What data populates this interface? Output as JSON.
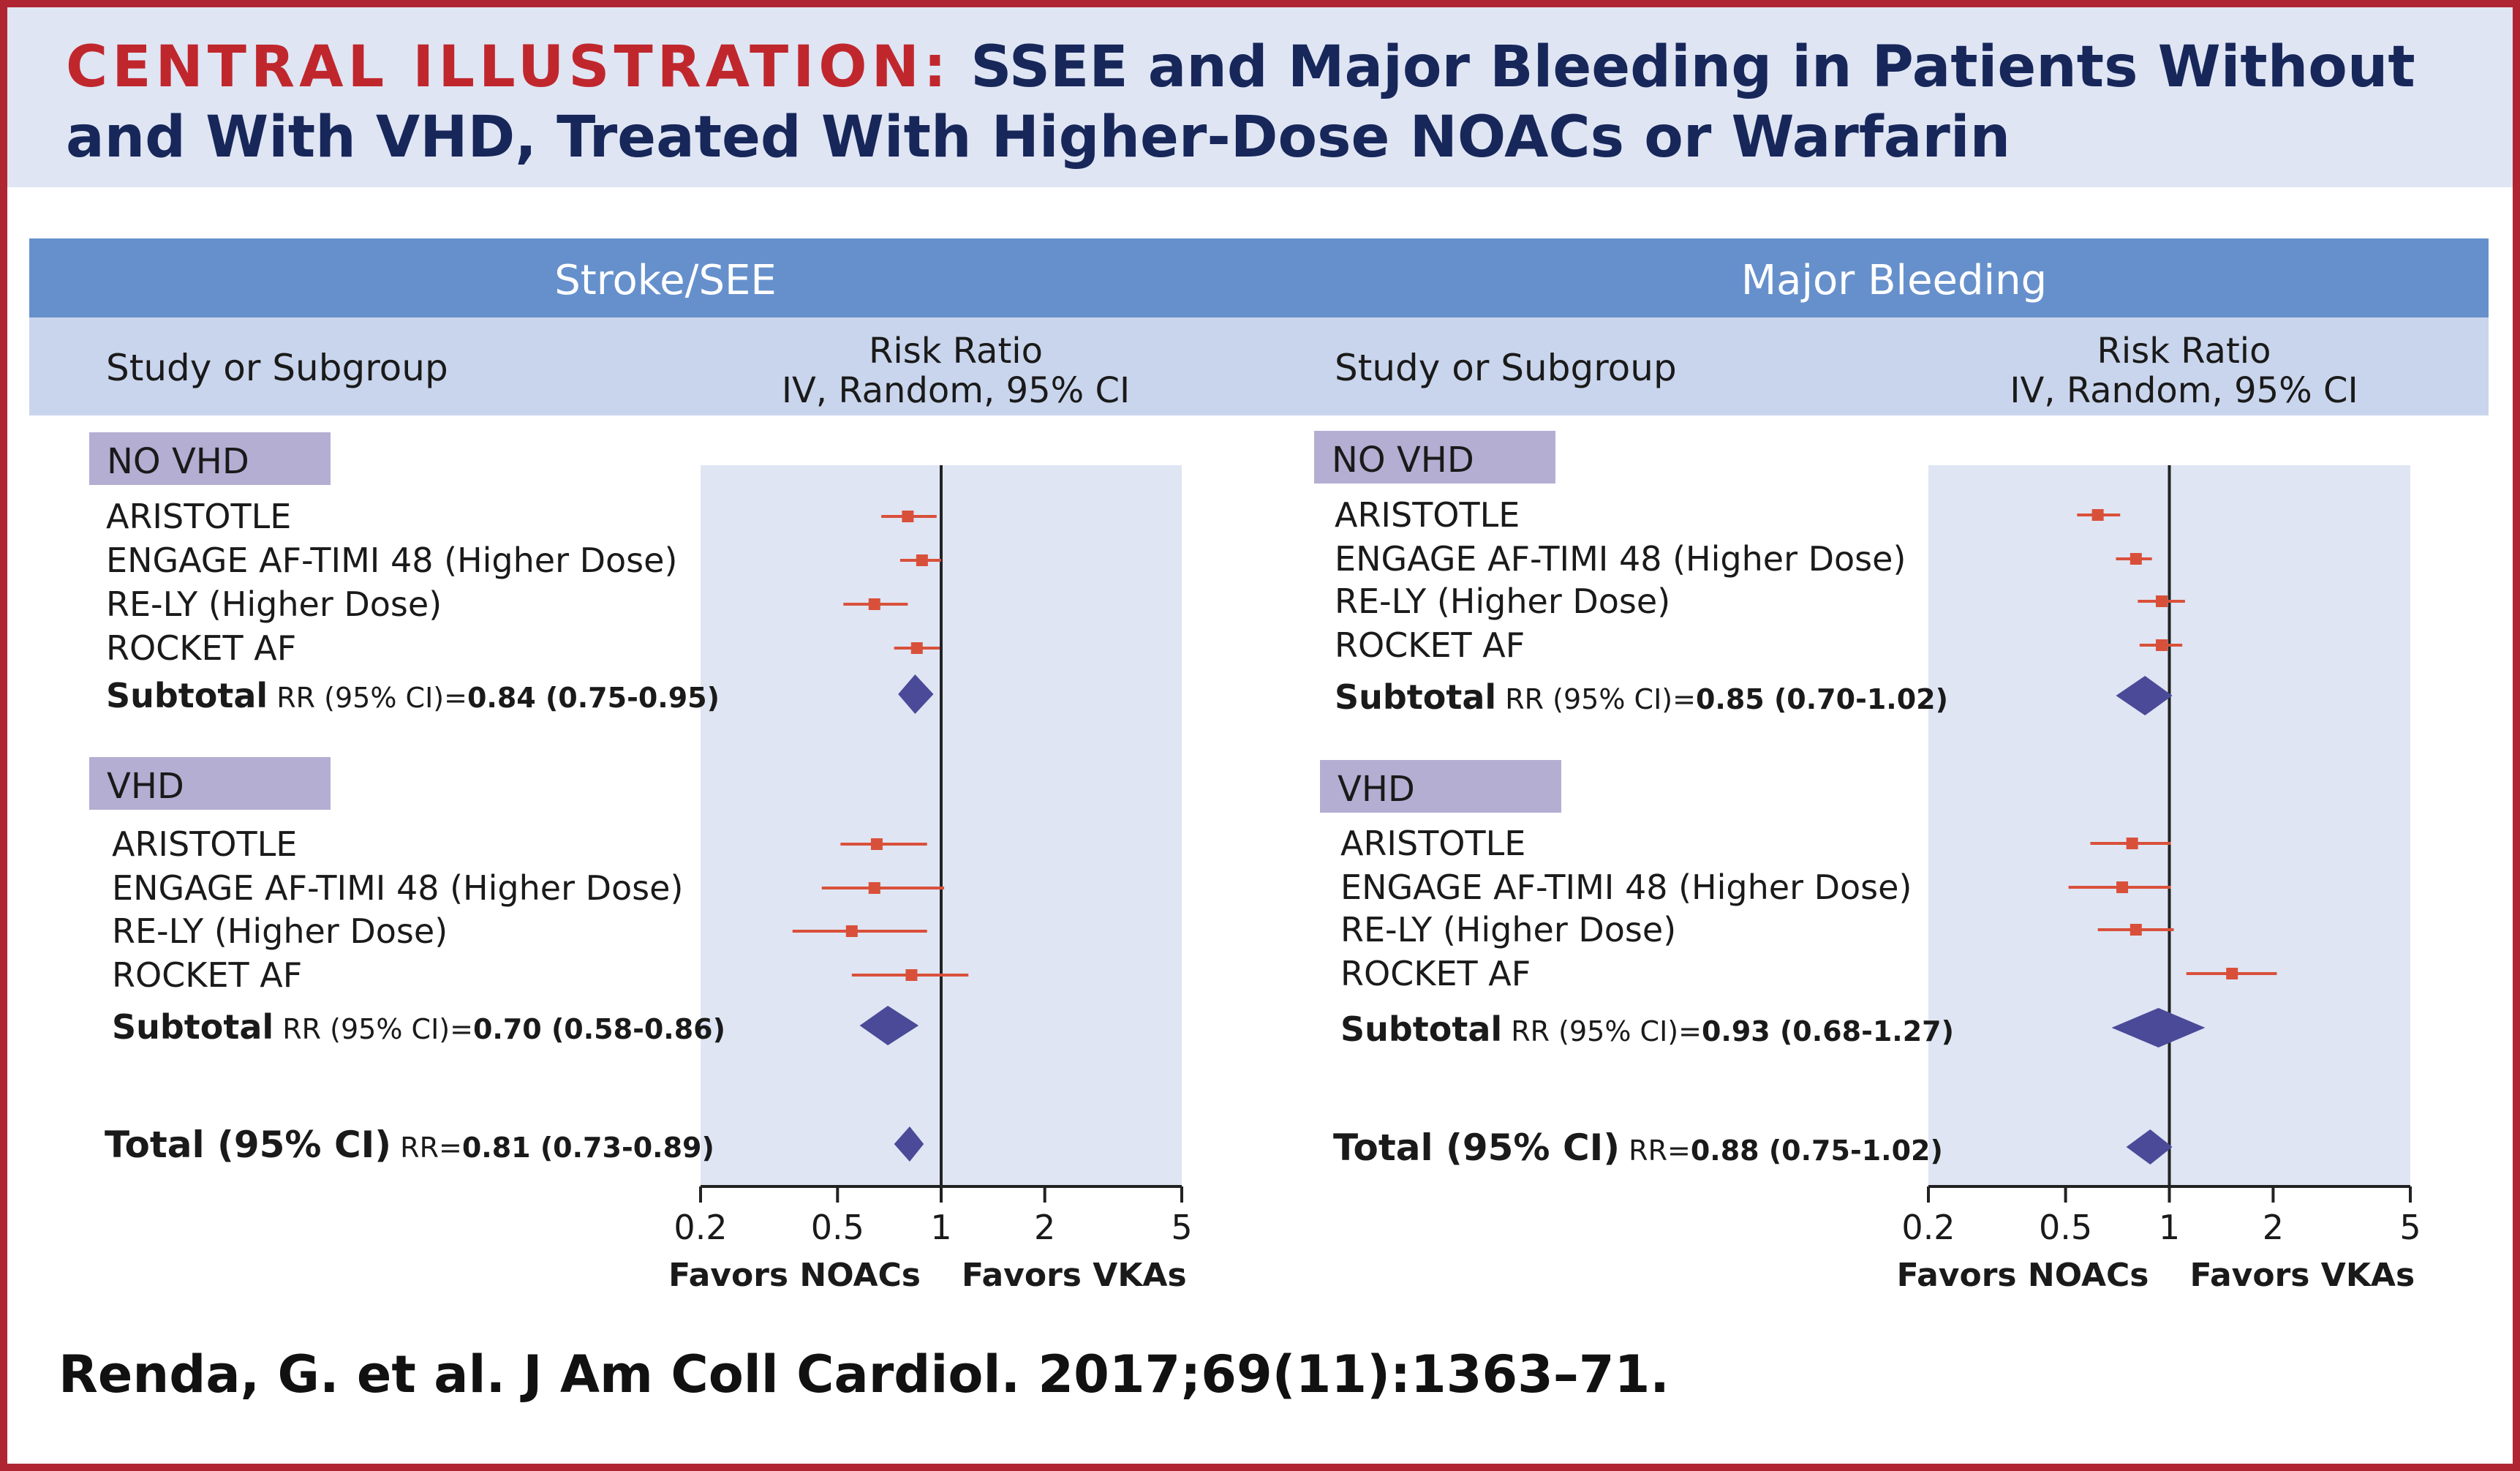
{
  "header": {
    "title_lead": "CENTRAL ILLUSTRATION:",
    "title_rest": "SSEE and Major Bleeding in Patients Without and With VHD, Treated With Higher-Dose NOACs or Warfarin"
  },
  "citation": "Renda, G. et al. J Am Coll Cardiol. 2017;69(11):1363–71.",
  "colors": {
    "border": "#b02532",
    "title_lead": "#c0272d",
    "title_text": "#17275a",
    "panel_header": "#6690cc",
    "subheader": "#c9d5ec",
    "plot_bg": "#dfe5f3",
    "group_label_bg": "#b4aed3",
    "study_marker": "#d9503a",
    "diamond": "#4a4a99"
  },
  "column_headers": {
    "study": "Study or Subgroup",
    "ratio_line1": "Risk Ratio",
    "ratio_line2": "IV, Random, 95% CI"
  },
  "axis_labels": {
    "left": "Favors NOACs",
    "right": "Favors  VKAs"
  },
  "chart_data": [
    {
      "type": "forest",
      "title": "Stroke/SEE",
      "x_scale": "log",
      "xlim": [
        0.2,
        5
      ],
      "xticks": [
        {
          "value": 0.2,
          "label": "0.2"
        },
        {
          "value": 0.5,
          "label": "0.5"
        },
        {
          "value": 1,
          "label": "1"
        },
        {
          "value": 2,
          "label": "2"
        },
        {
          "value": 5,
          "label": "5"
        }
      ],
      "reference_line": 1,
      "groups": [
        {
          "label": "NO VHD",
          "studies": [
            {
              "name": "ARISTOTLE",
              "rr": 0.8,
              "lo": 0.67,
              "hi": 0.97
            },
            {
              "name": "ENGAGE AF-TIMI 48 (Higher Dose)",
              "rr": 0.88,
              "lo": 0.76,
              "hi": 1.0
            },
            {
              "name": "RE-LY (Higher Dose)",
              "rr": 0.64,
              "lo": 0.52,
              "hi": 0.8
            },
            {
              "name": "ROCKET AF",
              "rr": 0.85,
              "lo": 0.73,
              "hi": 0.99
            }
          ],
          "subtotal": {
            "label": "Subtotal",
            "prefix": "RR (95% CI)=",
            "text": "0.84 (0.75-0.95)",
            "rr": 0.84,
            "lo": 0.75,
            "hi": 0.95
          }
        },
        {
          "label": "VHD",
          "studies": [
            {
              "name": "ARISTOTLE",
              "rr": 0.65,
              "lo": 0.51,
              "hi": 0.91
            },
            {
              "name": "ENGAGE AF-TIMI 48 (Higher Dose)",
              "rr": 0.64,
              "lo": 0.45,
              "hi": 1.02
            },
            {
              "name": "RE-LY (Higher Dose)",
              "rr": 0.55,
              "lo": 0.37,
              "hi": 0.91
            },
            {
              "name": "ROCKET AF",
              "rr": 0.82,
              "lo": 0.55,
              "hi": 1.2
            }
          ],
          "subtotal": {
            "label": "Subtotal",
            "prefix": "RR (95% CI)=",
            "text": "0.70 (0.58-0.86)",
            "rr": 0.7,
            "lo": 0.58,
            "hi": 0.86
          }
        }
      ],
      "total": {
        "label": "Total (95% CI)",
        "prefix": "RR=",
        "text": "0.81 (0.73-0.89)",
        "rr": 0.81,
        "lo": 0.73,
        "hi": 0.89
      }
    },
    {
      "type": "forest",
      "title": "Major Bleeding",
      "x_scale": "log",
      "xlim": [
        0.2,
        5
      ],
      "xticks": [
        {
          "value": 0.2,
          "label": "0.2"
        },
        {
          "value": 0.5,
          "label": "0.5"
        },
        {
          "value": 1,
          "label": "1"
        },
        {
          "value": 2,
          "label": "2"
        },
        {
          "value": 5,
          "label": "5"
        }
      ],
      "reference_line": 1,
      "groups": [
        {
          "label": "NO VHD",
          "studies": [
            {
              "name": "ARISTOTLE",
              "rr": 0.62,
              "lo": 0.54,
              "hi": 0.72
            },
            {
              "name": "ENGAGE AF-TIMI 48 (Higher Dose)",
              "rr": 0.8,
              "lo": 0.7,
              "hi": 0.89
            },
            {
              "name": "RE-LY (Higher Dose)",
              "rr": 0.95,
              "lo": 0.81,
              "hi": 1.11
            },
            {
              "name": "ROCKET AF",
              "rr": 0.95,
              "lo": 0.82,
              "hi": 1.09
            }
          ],
          "subtotal": {
            "label": "Subtotal",
            "prefix": "RR (95% CI)=",
            "text": "0.85 (0.70-1.02)",
            "rr": 0.85,
            "lo": 0.7,
            "hi": 1.02
          }
        },
        {
          "label": "VHD",
          "studies": [
            {
              "name": "ARISTOTLE",
              "rr": 0.78,
              "lo": 0.59,
              "hi": 1.01
            },
            {
              "name": "ENGAGE AF-TIMI 48 (Higher Dose)",
              "rr": 0.73,
              "lo": 0.51,
              "hi": 1.01
            },
            {
              "name": "RE-LY (Higher Dose)",
              "rr": 0.8,
              "lo": 0.62,
              "hi": 1.03
            },
            {
              "name": "ROCKET AF",
              "rr": 1.52,
              "lo": 1.12,
              "hi": 2.05
            }
          ],
          "subtotal": {
            "label": "Subtotal",
            "prefix": "RR (95% CI)=",
            "text": "0.93 (0.68-1.27)",
            "rr": 0.93,
            "lo": 0.68,
            "hi": 1.27
          }
        }
      ],
      "total": {
        "label": "Total (95% CI)",
        "prefix": "RR=",
        "text": "0.88 (0.75-1.02)",
        "rr": 0.88,
        "lo": 0.75,
        "hi": 1.02
      }
    }
  ]
}
